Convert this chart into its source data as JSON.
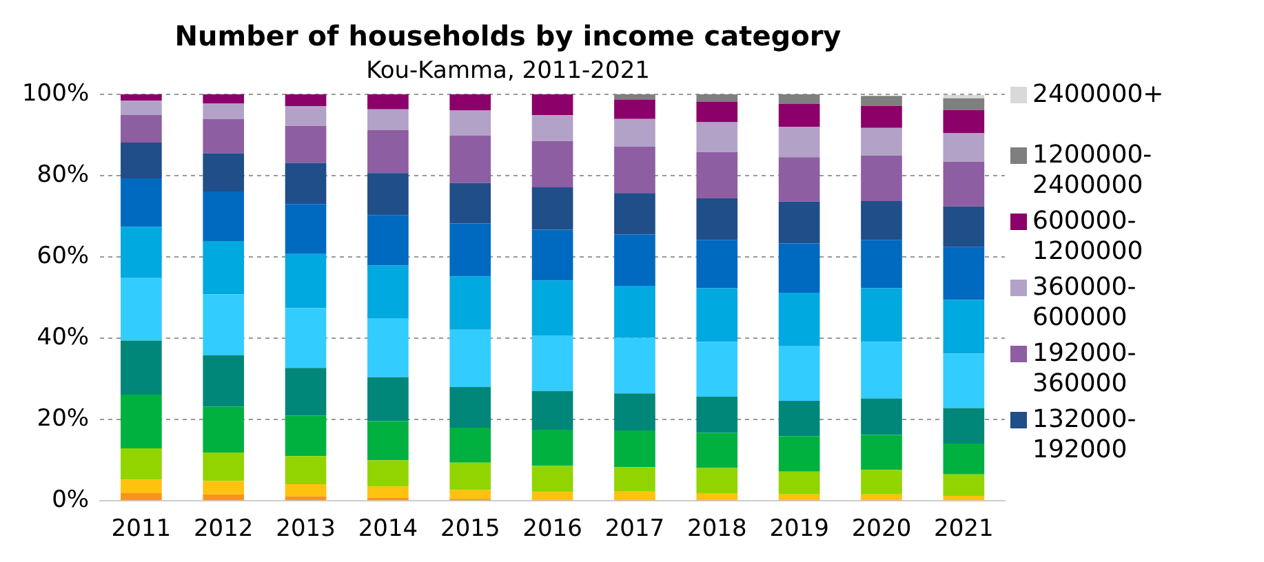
{
  "chart_data": {
    "type": "bar",
    "title": "Number of households by income category",
    "subtitle": "Kou-Kamma, 2011-2021",
    "stacked": true,
    "categories": [
      "2011",
      "2012",
      "2013",
      "2014",
      "2015",
      "2016",
      "2017",
      "2018",
      "2019",
      "2020",
      "2021"
    ],
    "ylim": [
      0,
      100
    ],
    "yticks": [
      {
        "value": 0,
        "label": "0%"
      },
      {
        "value": 20,
        "label": "20%"
      },
      {
        "value": 40,
        "label": "40%"
      },
      {
        "value": 60,
        "label": "60%"
      },
      {
        "value": 80,
        "label": "80%"
      },
      {
        "value": 100,
        "label": "100%"
      }
    ],
    "grid": "y",
    "legend": "right",
    "series": [
      {
        "color": "#f7941d",
        "values": [
          1.9,
          1.6,
          1.1,
          0.8,
          0.5,
          0.3,
          0.3,
          0.3,
          0.3,
          0.3,
          null
        ]
      },
      {
        "color": "#ffc20e",
        "values": [
          3.3,
          3.3,
          3.0,
          2.7,
          2.2,
          1.9,
          2.1,
          1.6,
          1.3,
          1.3,
          1.2
        ]
      },
      {
        "color": "#92d400",
        "values": [
          7.7,
          7.0,
          6.9,
          6.5,
          6.7,
          6.4,
          5.9,
          6.2,
          5.6,
          6.0,
          5.3
        ]
      },
      {
        "color": "#00b140",
        "values": [
          13.2,
          11.3,
          10.0,
          9.6,
          8.6,
          8.9,
          9.0,
          8.6,
          8.7,
          8.6,
          7.6
        ]
      },
      {
        "color": "#00877a",
        "values": [
          13.3,
          12.6,
          11.7,
          10.8,
          10.0,
          9.5,
          9.1,
          8.9,
          8.7,
          9.0,
          8.7
        ]
      },
      {
        "color": "#33ccff",
        "values": [
          15.4,
          15.0,
          14.7,
          14.4,
          14.1,
          13.7,
          13.7,
          13.5,
          13.4,
          13.9,
          13.4
        ]
      },
      {
        "color": "#00a9e0",
        "values": [
          12.6,
          13.1,
          13.3,
          13.1,
          13.1,
          13.5,
          12.8,
          13.2,
          13.2,
          13.2,
          13.2
        ]
      },
      {
        "color": "#0069c0",
        "values": [
          11.9,
          12.2,
          12.3,
          12.4,
          13.0,
          12.5,
          12.6,
          11.9,
          12.1,
          11.9,
          13.0
        ]
      },
      {
        "name": "132000-192000",
        "color": "#1f4e89",
        "values": [
          8.8,
          9.4,
          10.1,
          10.3,
          10.0,
          10.4,
          10.2,
          10.2,
          10.3,
          9.5,
          10.0
        ]
      },
      {
        "name": "192000-360000",
        "color": "#8e5ea2",
        "values": [
          6.8,
          8.4,
          9.1,
          10.6,
          11.6,
          11.4,
          11.4,
          11.4,
          10.9,
          11.2,
          11.0
        ]
      },
      {
        "name": "360000-600000",
        "color": "#b3a2c7",
        "values": [
          3.5,
          3.8,
          4.9,
          5.1,
          6.2,
          6.4,
          6.8,
          7.3,
          7.5,
          6.8,
          7.0
        ]
      },
      {
        "name": "600000-1200000",
        "color": "#8b0069",
        "values": [
          1.6,
          2.3,
          2.9,
          3.7,
          4.0,
          5.1,
          4.8,
          5.1,
          5.6,
          5.4,
          5.7
        ]
      },
      {
        "name": "1200000-2400000",
        "color": "#7f7f7f",
        "values": [
          0,
          0,
          0,
          0,
          0,
          0,
          1.3,
          1.8,
          2.4,
          2.5,
          2.9
        ]
      },
      {
        "name": "2400000+",
        "color": "#d9d9d9",
        "values": [
          0,
          0,
          0,
          0,
          0,
          0,
          0,
          0,
          0,
          null,
          0.8
        ]
      }
    ]
  }
}
